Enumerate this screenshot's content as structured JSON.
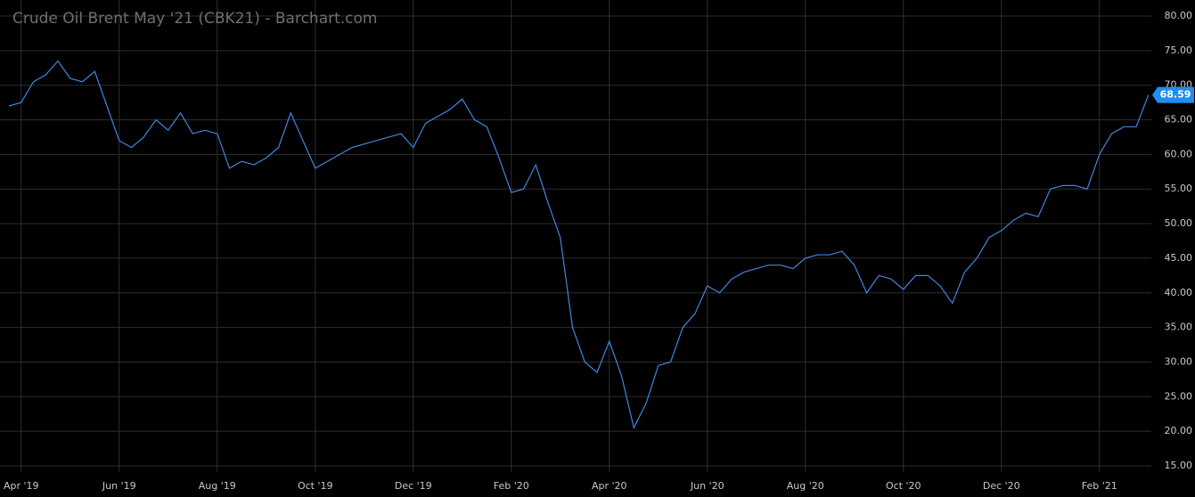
{
  "chart_data": {
    "type": "line",
    "title": "Crude Oil Brent May '21 (CBK21) - Barchart.com",
    "categories": [
      null,
      "Apr '19",
      null,
      null,
      null,
      null,
      null,
      null,
      null,
      "Jun '19",
      null,
      null,
      null,
      null,
      null,
      null,
      null,
      "Aug '19",
      null,
      null,
      null,
      null,
      null,
      null,
      null,
      "Oct '19",
      null,
      null,
      null,
      null,
      null,
      null,
      null,
      "Dec '19",
      null,
      null,
      null,
      null,
      null,
      null,
      null,
      "Feb '20",
      null,
      null,
      null,
      null,
      null,
      null,
      null,
      "Apr '20",
      null,
      null,
      null,
      null,
      null,
      null,
      null,
      "Jun '20",
      null,
      null,
      null,
      null,
      null,
      null,
      null,
      "Aug '20",
      null,
      null,
      null,
      null,
      null,
      null,
      null,
      "Oct '20",
      null,
      null,
      null,
      null,
      null,
      null,
      null,
      "Dec '20",
      null,
      null,
      null,
      null,
      null,
      null,
      null,
      "Feb '21",
      null,
      null,
      null,
      null
    ],
    "series": [
      {
        "name": "CBK21",
        "color": "#3f86e0",
        "values": [
          67,
          67.5,
          70.5,
          71.5,
          73.5,
          71,
          70.5,
          72,
          67,
          62,
          61,
          62.5,
          65,
          63.5,
          66,
          63,
          63.5,
          63,
          58,
          59,
          58.5,
          59.5,
          61,
          66,
          62,
          58,
          59,
          60,
          61,
          61.5,
          62,
          62.5,
          63,
          61,
          64.5,
          65.5,
          66.5,
          68,
          65,
          64,
          59.5,
          54.5,
          55,
          58.5,
          53,
          48,
          35,
          30,
          28.5,
          33,
          28,
          20.5,
          24,
          29.5,
          30,
          35,
          37,
          41,
          40,
          42,
          43,
          43.5,
          44,
          44,
          43.5,
          45,
          45.5,
          45.5,
          46,
          44,
          40,
          42.5,
          42,
          40.5,
          42.5,
          42.5,
          41,
          38.5,
          43,
          45,
          48,
          49,
          50.5,
          51.5,
          51,
          55,
          55.5,
          55.5,
          55,
          60,
          63,
          64,
          64,
          68.59
        ]
      }
    ],
    "ylim": [
      15,
      80
    ],
    "yticks": [
      {
        "value": 15,
        "label": "15.00"
      },
      {
        "value": 20,
        "label": "20.00"
      },
      {
        "value": 25,
        "label": "25.00"
      },
      {
        "value": 30,
        "label": "30.00"
      },
      {
        "value": 35,
        "label": "35.00"
      },
      {
        "value": 40,
        "label": "40.00"
      },
      {
        "value": 45,
        "label": "45.00"
      },
      {
        "value": 50,
        "label": "50.00"
      },
      {
        "value": 55,
        "label": "55.00"
      },
      {
        "value": 60,
        "label": "60.00"
      },
      {
        "value": 65,
        "label": "65.00"
      },
      {
        "value": 70,
        "label": "70.00"
      },
      {
        "value": 75,
        "label": "75.00"
      },
      {
        "value": 80,
        "label": "80.00"
      }
    ],
    "grid": true
  }
}
